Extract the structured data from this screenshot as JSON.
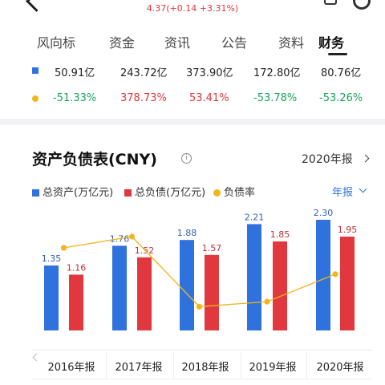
{
  "header": {
    "title_partial": "",
    "price_line": "4.37(+0.14 +3.31%)"
  },
  "tabs": [
    "风向标",
    "资金",
    "资讯",
    "公告",
    "资料",
    "财务"
  ],
  "active_tab": "财务",
  "summary_rows": [
    {
      "marker": "square",
      "marker_color": "#2f72de",
      "values": [
        "50.91亿",
        "243.72亿",
        "373.90亿",
        "172.80亿",
        "80.76亿"
      ]
    },
    {
      "marker": "dot",
      "marker_color": "#f2b51b",
      "values": [
        "-51.33%",
        "378.73%",
        "53.41%",
        "-53.78%",
        "-53.26%"
      ],
      "value_colors": [
        "#1aa35a",
        "#e0383e",
        "#e0383e",
        "#1aa35a",
        "#1aa35a"
      ]
    }
  ],
  "section": {
    "title": "资产负债表(CNY)",
    "info_icon": "i",
    "period_label": "2020年报",
    "frequency_label": "年报"
  },
  "legend": [
    "总资产(万亿元)",
    "总负债(万亿元)",
    "负债率"
  ],
  "chart_data": {
    "type": "bar",
    "categories": [
      "2016年报",
      "2017年报",
      "2018年报",
      "2019年报",
      "2020年报"
    ],
    "series": [
      {
        "name": "总资产(万亿元)",
        "values": [
          1.35,
          1.76,
          1.88,
          2.21,
          2.3
        ],
        "color": "#2f72de",
        "labels": [
          "1.35",
          "1.76",
          "1.88",
          "2.21",
          "2.30"
        ]
      },
      {
        "name": "总负债(万亿元)",
        "values": [
          1.16,
          1.52,
          1.57,
          1.85,
          1.95
        ],
        "color": "#e0383e",
        "labels": [
          "1.16",
          "1.52",
          "1.57",
          "1.85",
          "1.95"
        ]
      }
    ],
    "line_series": {
      "name": "负债率",
      "color": "#f2b51b",
      "relative_values": [
        0.66,
        0.75,
        0.19,
        0.23,
        0.45
      ]
    },
    "ylim": [
      0,
      2.6
    ],
    "legend_position": "top-left"
  }
}
